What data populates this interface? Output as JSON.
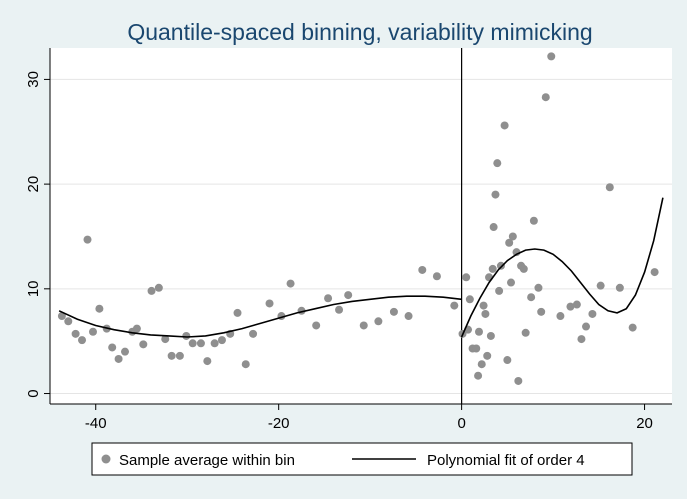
{
  "chart_data": {
    "type": "scatter",
    "title": "Quantile-spaced binning, variability mimicking",
    "xlabel": "",
    "ylabel": "",
    "xlim": [
      -45,
      23
    ],
    "ylim": [
      -1,
      33
    ],
    "xticks": [
      -40,
      -20,
      0,
      20
    ],
    "yticks": [
      0,
      10,
      20,
      30
    ],
    "grid": "horizontal",
    "cutoff_x": 0,
    "legend_position": "bottom",
    "colors": {
      "points": "#8f8f8f",
      "fit": "#000000",
      "title": "#1a476f",
      "background": "#eaf2f3",
      "plot": "#ffffff"
    },
    "series": [
      {
        "name": "Sample average within bin",
        "kind": "scatter",
        "points": [
          [
            -43.7,
            7.4
          ],
          [
            -43.0,
            6.9
          ],
          [
            -42.2,
            5.7
          ],
          [
            -41.5,
            5.1
          ],
          [
            -40.9,
            14.7
          ],
          [
            -40.3,
            5.9
          ],
          [
            -39.6,
            8.1
          ],
          [
            -38.8,
            6.2
          ],
          [
            -38.2,
            4.4
          ],
          [
            -37.5,
            3.3
          ],
          [
            -36.8,
            4.0
          ],
          [
            -36.0,
            5.9
          ],
          [
            -35.5,
            6.2
          ],
          [
            -34.8,
            4.7
          ],
          [
            -33.9,
            9.8
          ],
          [
            -33.1,
            10.1
          ],
          [
            -32.4,
            5.2
          ],
          [
            -31.7,
            3.6
          ],
          [
            -30.8,
            3.6
          ],
          [
            -30.1,
            5.5
          ],
          [
            -29.4,
            4.8
          ],
          [
            -28.5,
            4.8
          ],
          [
            -27.8,
            3.1
          ],
          [
            -27.0,
            4.8
          ],
          [
            -26.2,
            5.1
          ],
          [
            -25.3,
            5.7
          ],
          [
            -24.5,
            7.7
          ],
          [
            -23.6,
            2.8
          ],
          [
            -22.8,
            5.7
          ],
          [
            -21.0,
            8.6
          ],
          [
            -19.7,
            7.4
          ],
          [
            -18.7,
            10.5
          ],
          [
            -17.5,
            7.9
          ],
          [
            -15.9,
            6.5
          ],
          [
            -14.6,
            9.1
          ],
          [
            -13.4,
            8.0
          ],
          [
            -12.4,
            9.4
          ],
          [
            -10.7,
            6.5
          ],
          [
            -9.1,
            6.9
          ],
          [
            -7.4,
            7.8
          ],
          [
            -5.8,
            7.4
          ],
          [
            -4.3,
            11.8
          ],
          [
            -2.7,
            11.2
          ],
          [
            -0.8,
            8.4
          ],
          [
            0.1,
            5.7
          ],
          [
            0.5,
            11.1
          ],
          [
            0.7,
            6.1
          ],
          [
            0.9,
            9.0
          ],
          [
            1.2,
            4.3
          ],
          [
            1.6,
            4.3
          ],
          [
            1.8,
            1.7
          ],
          [
            1.9,
            5.9
          ],
          [
            2.2,
            2.8
          ],
          [
            2.4,
            8.4
          ],
          [
            2.6,
            7.6
          ],
          [
            2.8,
            3.6
          ],
          [
            3.0,
            11.1
          ],
          [
            3.2,
            5.5
          ],
          [
            3.4,
            11.9
          ],
          [
            3.5,
            15.9
          ],
          [
            3.7,
            19.0
          ],
          [
            3.9,
            22.0
          ],
          [
            4.1,
            9.8
          ],
          [
            4.3,
            12.2
          ],
          [
            4.7,
            25.6
          ],
          [
            5.0,
            3.2
          ],
          [
            5.2,
            14.4
          ],
          [
            5.4,
            10.6
          ],
          [
            5.6,
            15.0
          ],
          [
            6.0,
            13.5
          ],
          [
            6.2,
            1.2
          ],
          [
            6.5,
            12.2
          ],
          [
            6.8,
            11.9
          ],
          [
            7.0,
            5.8
          ],
          [
            7.6,
            9.2
          ],
          [
            7.9,
            16.5
          ],
          [
            8.4,
            10.1
          ],
          [
            8.7,
            7.8
          ],
          [
            9.2,
            28.3
          ],
          [
            9.8,
            32.2
          ],
          [
            10.8,
            7.4
          ],
          [
            11.9,
            8.3
          ],
          [
            12.6,
            8.5
          ],
          [
            13.1,
            5.2
          ],
          [
            13.6,
            6.4
          ],
          [
            14.3,
            7.6
          ],
          [
            15.2,
            10.3
          ],
          [
            16.2,
            19.7
          ],
          [
            17.3,
            10.1
          ],
          [
            18.7,
            6.3
          ],
          [
            21.1,
            11.6
          ]
        ]
      },
      {
        "name": "Polynomial fit of order 4",
        "kind": "line",
        "segments": [
          [
            [
              -44,
              7.9
            ],
            [
              -42,
              7.1
            ],
            [
              -40,
              6.5
            ],
            [
              -38,
              6.1
            ],
            [
              -36,
              5.8
            ],
            [
              -34,
              5.6
            ],
            [
              -32,
              5.5
            ],
            [
              -30,
              5.4
            ],
            [
              -28,
              5.5
            ],
            [
              -26,
              5.8
            ],
            [
              -24,
              6.2
            ],
            [
              -22,
              6.7
            ],
            [
              -20,
              7.2
            ],
            [
              -18,
              7.7
            ],
            [
              -16,
              8.1
            ],
            [
              -14,
              8.5
            ],
            [
              -12,
              8.8
            ],
            [
              -10,
              9.0
            ],
            [
              -8,
              9.2
            ],
            [
              -6,
              9.3
            ],
            [
              -4,
              9.3
            ],
            [
              -2,
              9.2
            ],
            [
              0,
              9.0
            ]
          ],
          [
            [
              0,
              5.4
            ],
            [
              1,
              7.4
            ],
            [
              2,
              9.1
            ],
            [
              3,
              10.6
            ],
            [
              4,
              11.8
            ],
            [
              5,
              12.7
            ],
            [
              6,
              13.3
            ],
            [
              7,
              13.7
            ],
            [
              8,
              13.8
            ],
            [
              9,
              13.7
            ],
            [
              10,
              13.3
            ],
            [
              11,
              12.6
            ],
            [
              12,
              11.7
            ],
            [
              13,
              10.6
            ],
            [
              14,
              9.5
            ],
            [
              15,
              8.5
            ],
            [
              16,
              7.9
            ],
            [
              17,
              7.7
            ],
            [
              18,
              8.1
            ],
            [
              19,
              9.4
            ],
            [
              20,
              11.6
            ],
            [
              21,
              14.6
            ],
            [
              22,
              18.7
            ]
          ]
        ]
      }
    ],
    "legend": {
      "scatter_label": "Sample average within bin",
      "line_label": "Polynomial fit of order 4"
    }
  }
}
